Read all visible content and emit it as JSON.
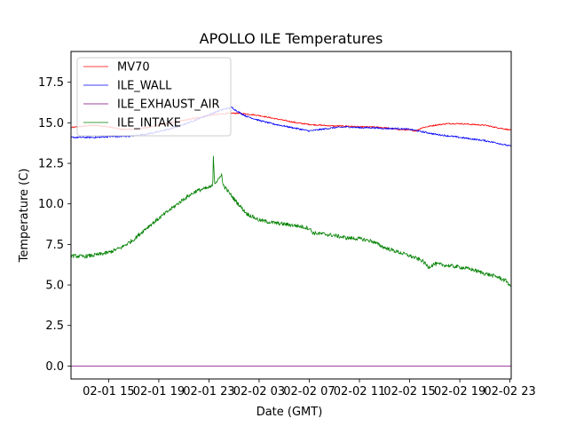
{
  "chart_data": {
    "type": "line",
    "title": "APOLLO ILE Temperatures",
    "xlabel": "Date (GMT)",
    "ylabel": "Temperature (C)",
    "x_unit": "hours since 2019-02-01 00:00 GMT",
    "xlim": [
      12.0,
      47.1
    ],
    "ylim": [
      -0.8,
      19.4
    ],
    "grid": false,
    "legend_position": "top-left",
    "x_ticks": [
      {
        "value": 15,
        "label": "02-01 15"
      },
      {
        "value": 19,
        "label": "02-01 19"
      },
      {
        "value": 23,
        "label": "02-01 23"
      },
      {
        "value": 27,
        "label": "02-02 03"
      },
      {
        "value": 31,
        "label": "02-02 07"
      },
      {
        "value": 35,
        "label": "02-02 11"
      },
      {
        "value": 39,
        "label": "02-02 15"
      },
      {
        "value": 43,
        "label": "02-02 19"
      },
      {
        "value": 47,
        "label": "02-02 23"
      }
    ],
    "y_ticks": [
      {
        "value": 0.0,
        "label": "0.0"
      },
      {
        "value": 2.5,
        "label": "2.5"
      },
      {
        "value": 5.0,
        "label": "5.0"
      },
      {
        "value": 7.5,
        "label": "7.5"
      },
      {
        "value": 10.0,
        "label": "10.0"
      },
      {
        "value": 12.5,
        "label": "12.5"
      },
      {
        "value": 15.0,
        "label": "15.0"
      },
      {
        "value": 17.5,
        "label": "17.5"
      }
    ],
    "series": [
      {
        "name": "MV70",
        "color": "#ff0000",
        "noise": 0.04,
        "points": [
          [
            12.0,
            14.7
          ],
          [
            13.0,
            14.8
          ],
          [
            14.0,
            14.85
          ],
          [
            15.0,
            14.75
          ],
          [
            16.0,
            14.6
          ],
          [
            17.0,
            14.6
          ],
          [
            18.0,
            14.7
          ],
          [
            19.0,
            14.85
          ],
          [
            20.0,
            15.0
          ],
          [
            21.0,
            15.15
          ],
          [
            22.0,
            15.3
          ],
          [
            23.0,
            15.45
          ],
          [
            24.0,
            15.55
          ],
          [
            25.0,
            15.6
          ],
          [
            26.0,
            15.55
          ],
          [
            27.0,
            15.45
          ],
          [
            28.0,
            15.3
          ],
          [
            29.0,
            15.15
          ],
          [
            30.0,
            15.0
          ],
          [
            31.0,
            14.9
          ],
          [
            32.0,
            14.85
          ],
          [
            33.0,
            14.8
          ],
          [
            34.0,
            14.8
          ],
          [
            35.0,
            14.75
          ],
          [
            36.0,
            14.75
          ],
          [
            37.0,
            14.7
          ],
          [
            38.0,
            14.6
          ],
          [
            39.0,
            14.55
          ],
          [
            39.5,
            14.5
          ],
          [
            40.0,
            14.7
          ],
          [
            41.0,
            14.85
          ],
          [
            42.0,
            14.95
          ],
          [
            43.0,
            14.95
          ],
          [
            44.0,
            14.9
          ],
          [
            45.0,
            14.85
          ],
          [
            46.0,
            14.7
          ],
          [
            47.1,
            14.55
          ]
        ]
      },
      {
        "name": "ILE_WALL",
        "color": "#0000ff",
        "noise": 0.05,
        "points": [
          [
            12.0,
            14.1
          ],
          [
            13.0,
            14.1
          ],
          [
            14.0,
            14.1
          ],
          [
            15.0,
            14.15
          ],
          [
            16.0,
            14.15
          ],
          [
            17.0,
            14.2
          ],
          [
            18.0,
            14.3
          ],
          [
            19.0,
            14.45
          ],
          [
            20.0,
            14.65
          ],
          [
            21.0,
            14.9
          ],
          [
            22.0,
            15.2
          ],
          [
            23.0,
            15.5
          ],
          [
            24.0,
            15.8
          ],
          [
            24.8,
            15.95
          ],
          [
            25.5,
            15.6
          ],
          [
            26.0,
            15.4
          ],
          [
            27.0,
            15.15
          ],
          [
            28.0,
            14.95
          ],
          [
            29.0,
            14.8
          ],
          [
            30.0,
            14.65
          ],
          [
            31.0,
            14.5
          ],
          [
            32.0,
            14.6
          ],
          [
            33.0,
            14.7
          ],
          [
            34.0,
            14.75
          ],
          [
            35.0,
            14.7
          ],
          [
            36.0,
            14.7
          ],
          [
            37.0,
            14.65
          ],
          [
            38.0,
            14.65
          ],
          [
            39.0,
            14.6
          ],
          [
            40.0,
            14.45
          ],
          [
            41.0,
            14.3
          ],
          [
            42.0,
            14.2
          ],
          [
            43.0,
            14.1
          ],
          [
            44.0,
            14.0
          ],
          [
            45.0,
            13.9
          ],
          [
            46.0,
            13.75
          ],
          [
            47.1,
            13.55
          ]
        ]
      },
      {
        "name": "ILE_EXHAUST_AIR",
        "color": "#800080",
        "noise": 0.0,
        "points": [
          [
            12.0,
            0.0
          ],
          [
            47.1,
            0.0
          ]
        ]
      },
      {
        "name": "ILE_INTAKE",
        "color": "#008000",
        "noise": 0.12,
        "points": [
          [
            12.0,
            6.8
          ],
          [
            13.0,
            6.75
          ],
          [
            14.0,
            6.85
          ],
          [
            15.0,
            7.0
          ],
          [
            16.0,
            7.3
          ],
          [
            17.0,
            7.8
          ],
          [
            18.0,
            8.5
          ],
          [
            19.0,
            9.1
          ],
          [
            20.0,
            9.7
          ],
          [
            21.0,
            10.3
          ],
          [
            22.0,
            10.8
          ],
          [
            23.0,
            11.0
          ],
          [
            23.3,
            11.1
          ],
          [
            23.35,
            13.0
          ],
          [
            23.45,
            11.3
          ],
          [
            23.8,
            11.5
          ],
          [
            24.0,
            11.9
          ],
          [
            24.1,
            11.2
          ],
          [
            25.0,
            10.3
          ],
          [
            26.0,
            9.4
          ],
          [
            27.0,
            9.0
          ],
          [
            28.0,
            8.85
          ],
          [
            29.0,
            8.75
          ],
          [
            30.0,
            8.65
          ],
          [
            31.0,
            8.5
          ],
          [
            31.3,
            8.2
          ],
          [
            32.0,
            8.15
          ],
          [
            33.0,
            8.05
          ],
          [
            34.0,
            7.9
          ],
          [
            35.0,
            7.85
          ],
          [
            36.0,
            7.7
          ],
          [
            37.0,
            7.3
          ],
          [
            38.0,
            7.05
          ],
          [
            39.0,
            6.8
          ],
          [
            40.0,
            6.5
          ],
          [
            40.5,
            6.1
          ],
          [
            41.0,
            6.3
          ],
          [
            42.0,
            6.2
          ],
          [
            43.0,
            6.1
          ],
          [
            44.0,
            5.95
          ],
          [
            45.0,
            5.7
          ],
          [
            46.0,
            5.5
          ],
          [
            46.8,
            5.2
          ],
          [
            47.0,
            4.9
          ],
          [
            47.1,
            5.0
          ]
        ]
      }
    ]
  }
}
